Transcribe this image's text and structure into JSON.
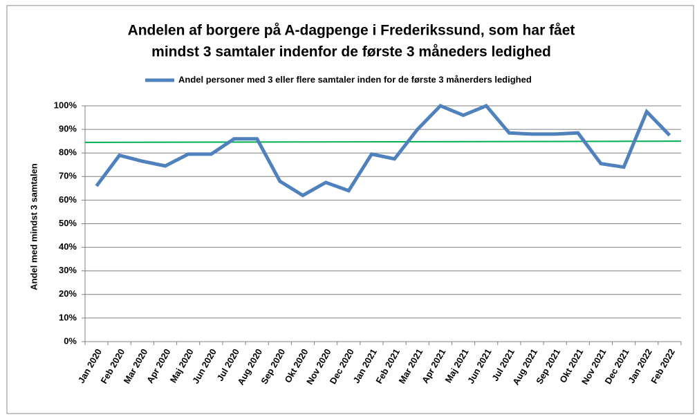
{
  "chart_data": {
    "type": "line",
    "title": [
      "Andelen af borgere på A-dagpenge i Frederikssund, som har fået",
      "mindst 3 samtaler indenfor de første 3 måneders ledighed"
    ],
    "y_label": "Andel med mindst 3 samtalen",
    "categories": [
      "Jan 2020",
      "Feb 2020",
      "Mar 2020",
      "Apr 2020",
      "Maj 2020",
      "Jun 2020",
      "Jul 2020",
      "Aug 2020",
      "Sep 2020",
      "Okt 2020",
      "Nov 2020",
      "Dec 2020",
      "Jan 2021",
      "Feb 2021",
      "Mar 2021",
      "Apr 2021",
      "Maj 2021",
      "Jun 2021",
      "Jul 2021",
      "Aug 2021",
      "Sep 2021",
      "Okt 2021",
      "Nov 2021",
      "Dec 2021",
      "Jan 2022",
      "Feb 2022"
    ],
    "series": [
      {
        "name": "Andel personer med 3 eller flere samtaler inden for de første 3 månerders ledighed",
        "color": "#4f81bd",
        "values": [
          66,
          79,
          76.5,
          74.5,
          79.5,
          79.5,
          86,
          86,
          68,
          62,
          67.5,
          64,
          79.5,
          77.5,
          90,
          100,
          96,
          100,
          88.5,
          88,
          88,
          88.5,
          75.5,
          74,
          97.5,
          87.5
        ]
      }
    ],
    "trendline": {
      "color": "#00b050",
      "values": [
        84.5,
        85
      ]
    },
    "ylim": [
      0,
      100
    ],
    "yticks": [
      {
        "value": 0,
        "label": "0%"
      },
      {
        "value": 10,
        "label": "10%"
      },
      {
        "value": 20,
        "label": "20%"
      },
      {
        "value": 30,
        "label": "30%"
      },
      {
        "value": 40,
        "label": "40%"
      },
      {
        "value": 50,
        "label": "50%"
      },
      {
        "value": 60,
        "label": "60%"
      },
      {
        "value": 70,
        "label": "70%"
      },
      {
        "value": 80,
        "label": "80%"
      },
      {
        "value": 90,
        "label": "90%"
      },
      {
        "value": 100,
        "label": "100%"
      }
    ],
    "grid": true,
    "legend": "top"
  }
}
